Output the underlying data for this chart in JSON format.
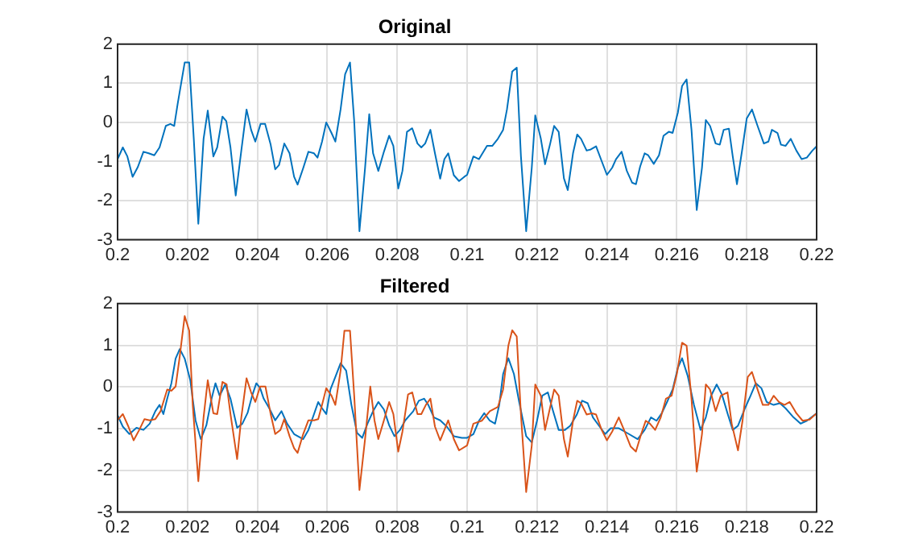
{
  "chart_data": [
    {
      "type": "line",
      "title": "Original",
      "xlim": [
        0.2,
        0.22
      ],
      "xticks": [
        0.2,
        0.202,
        0.204,
        0.206,
        0.208,
        0.21,
        0.212,
        0.214,
        0.216,
        0.218,
        0.22
      ],
      "ylim": [
        -3,
        2
      ],
      "yticks": [
        -3,
        -2,
        -1,
        0,
        1,
        2
      ],
      "grid": true,
      "series": [
        {
          "color": "#0072bd",
          "x": [
            0.2,
            0.20015,
            0.20028,
            0.20043,
            0.20058,
            0.20074,
            0.20089,
            0.20105,
            0.2012,
            0.20138,
            0.20151,
            0.20162,
            0.20172,
            0.20192,
            0.20205,
            0.20218,
            0.20231,
            0.20246,
            0.20258,
            0.20274,
            0.20285,
            0.203,
            0.20311,
            0.20323,
            0.20338,
            0.20354,
            0.20369,
            0.20382,
            0.20394,
            0.20409,
            0.20422,
            0.20438,
            0.20451,
            0.20462,
            0.20477,
            0.20492,
            0.20505,
            0.20515,
            0.20531,
            0.20546,
            0.20562,
            0.20572,
            0.20585,
            0.20597,
            0.20612,
            0.20623,
            0.20638,
            0.20651,
            0.20665,
            0.20677,
            0.20692,
            0.20708,
            0.2072,
            0.20731,
            0.20746,
            0.20762,
            0.20777,
            0.20789,
            0.20803,
            0.20815,
            0.20828,
            0.20843,
            0.20858,
            0.20869,
            0.2088,
            0.20895,
            0.20908,
            0.20923,
            0.20935,
            0.20946,
            0.20962,
            0.20977,
            0.20992,
            0.21,
            0.21018,
            0.21034,
            0.21057,
            0.21072,
            0.21088,
            0.21103,
            0.21114,
            0.21129,
            0.21142,
            0.21154,
            0.21169,
            0.21185,
            0.21195,
            0.21211,
            0.21223,
            0.21237,
            0.21249,
            0.21262,
            0.21277,
            0.21288,
            0.21303,
            0.21315,
            0.21326,
            0.21342,
            0.21354,
            0.21369,
            0.21385,
            0.214,
            0.21415,
            0.21426,
            0.21442,
            0.21457,
            0.21472,
            0.21483,
            0.21495,
            0.21508,
            0.21518,
            0.21534,
            0.21549,
            0.21562,
            0.21577,
            0.21588,
            0.21603,
            0.21615,
            0.21628,
            0.21642,
            0.21657,
            0.21672,
            0.21683,
            0.21695,
            0.21711,
            0.21723,
            0.21734,
            0.21749,
            0.2176,
            0.21772,
            0.21788,
            0.218,
            0.21815,
            0.21831,
            0.21849,
            0.21862,
            0.21872,
            0.21888,
            0.21898,
            0.21911,
            0.21926,
            0.21942,
            0.21957,
            0.21972,
            0.21988,
            0.22
          ],
          "values": [
            -0.94,
            -0.64,
            -0.87,
            -1.39,
            -1.14,
            -0.75,
            -0.79,
            -0.84,
            -0.64,
            -0.09,
            -0.04,
            -0.09,
            0.48,
            1.53,
            1.53,
            -0.42,
            -2.59,
            -0.42,
            0.3,
            -0.87,
            -0.64,
            0.15,
            0.03,
            -0.64,
            -1.87,
            -0.72,
            0.33,
            -0.19,
            -0.49,
            -0.04,
            -0.04,
            -0.57,
            -1.2,
            -1.09,
            -0.54,
            -0.79,
            -1.39,
            -1.59,
            -1.17,
            -0.75,
            -0.79,
            -0.9,
            -0.49,
            0,
            -0.27,
            -0.49,
            0.33,
            1.23,
            1.53,
            0.03,
            -2.78,
            -1.17,
            0.21,
            -0.79,
            -1.24,
            -0.75,
            -0.34,
            -0.6,
            -1.69,
            -1.24,
            -0.24,
            -0.15,
            -0.54,
            -0.64,
            -0.54,
            -0.19,
            -0.79,
            -1.44,
            -0.94,
            -0.79,
            -1.35,
            -1.5,
            -1.39,
            -1.34,
            -0.87,
            -0.94,
            -0.6,
            -0.6,
            -0.42,
            -0.19,
            0.33,
            1.3,
            1.4,
            -0.87,
            -2.78,
            -1.16,
            0.18,
            -0.42,
            -1.07,
            -0.57,
            -0.09,
            -0.24,
            -1.43,
            -1.73,
            -0.79,
            -0.31,
            -0.42,
            -0.72,
            -0.69,
            -0.61,
            -0.99,
            -1.34,
            -1.16,
            -0.94,
            -0.75,
            -1.24,
            -1.54,
            -1.58,
            -1.13,
            -0.79,
            -0.84,
            -1.06,
            -0.84,
            -0.34,
            -0.24,
            -0.27,
            0.25,
            0.93,
            1.1,
            -0.19,
            -2.24,
            -1.16,
            0.06,
            -0.09,
            -0.54,
            -0.57,
            -0.19,
            -0.16,
            -0.87,
            -1.58,
            -0.64,
            0.1,
            0.33,
            -0.09,
            -0.54,
            -0.49,
            -0.19,
            -0.27,
            -0.57,
            -0.6,
            -0.42,
            -0.72,
            -0.94,
            -0.9,
            -0.72,
            -0.61
          ]
        }
      ]
    },
    {
      "type": "line",
      "title": "Filtered",
      "xlim": [
        0.2,
        0.22
      ],
      "xticks": [
        0.2,
        0.202,
        0.204,
        0.206,
        0.208,
        0.21,
        0.212,
        0.214,
        0.216,
        0.218,
        0.22
      ],
      "ylim": [
        -3,
        2
      ],
      "yticks": [
        -3,
        -2,
        -1,
        0,
        1,
        2
      ],
      "grid": true,
      "series": [
        {
          "color": "#d95319",
          "x": [
            0.2,
            0.20015,
            0.20031,
            0.20046,
            0.20062,
            0.20077,
            0.20092,
            0.20108,
            0.20123,
            0.20142,
            0.20154,
            0.20166,
            0.20177,
            0.20192,
            0.20205,
            0.20215,
            0.20231,
            0.20246,
            0.20258,
            0.20274,
            0.20285,
            0.203,
            0.20312,
            0.20323,
            0.20342,
            0.20354,
            0.20369,
            0.20382,
            0.20394,
            0.20408,
            0.20423,
            0.20438,
            0.20451,
            0.20466,
            0.20477,
            0.20492,
            0.20505,
            0.20515,
            0.20531,
            0.20546,
            0.20562,
            0.20574,
            0.20585,
            0.20597,
            0.20612,
            0.20623,
            0.20638,
            0.20649,
            0.20665,
            0.20677,
            0.20692,
            0.20708,
            0.20723,
            0.20735,
            0.20746,
            0.20762,
            0.20777,
            0.20789,
            0.20803,
            0.20815,
            0.20831,
            0.20843,
            0.20858,
            0.20869,
            0.20882,
            0.20895,
            0.20908,
            0.20923,
            0.20935,
            0.20946,
            0.20962,
            0.20977,
            0.21,
            0.21018,
            0.21042,
            0.21065,
            0.21088,
            0.21103,
            0.21118,
            0.21129,
            0.21142,
            0.21154,
            0.21169,
            0.21185,
            0.21195,
            0.21211,
            0.21223,
            0.21237,
            0.21249,
            0.21262,
            0.21277,
            0.21288,
            0.21303,
            0.21315,
            0.21326,
            0.21342,
            0.21357,
            0.21369,
            0.21385,
            0.214,
            0.21415,
            0.21434,
            0.21449,
            0.21468,
            0.21483,
            0.21498,
            0.21511,
            0.21523,
            0.21538,
            0.21554,
            0.21569,
            0.21585,
            0.216,
            0.21615,
            0.21628,
            0.21642,
            0.21657,
            0.21672,
            0.21683,
            0.21695,
            0.21711,
            0.21726,
            0.21745,
            0.21757,
            0.21775,
            0.21788,
            0.21803,
            0.21815,
            0.21831,
            0.21846,
            0.21862,
            0.21877,
            0.21892,
            0.21908,
            0.21923,
            0.21942,
            0.2196,
            0.2198,
            0.22
          ],
          "values": [
            -0.8,
            -0.65,
            -0.95,
            -1.28,
            -1.03,
            -0.77,
            -0.8,
            -0.77,
            -0.58,
            -0.06,
            -0.09,
            0.01,
            0.68,
            1.7,
            1.35,
            -0.43,
            -2.26,
            -0.73,
            0.16,
            -0.63,
            -0.65,
            0.12,
            0.06,
            -0.65,
            -1.73,
            -0.73,
            0.21,
            -0.13,
            -0.36,
            0.01,
            0.01,
            -0.65,
            -1.13,
            -1.03,
            -0.77,
            -1.18,
            -1.47,
            -1.58,
            -1.13,
            -0.8,
            -0.8,
            -0.77,
            -0.43,
            -0.03,
            -0.21,
            -0.43,
            0.39,
            1.35,
            1.35,
            -0.21,
            -2.47,
            -1.25,
            0.01,
            -0.8,
            -1.25,
            -0.8,
            -0.36,
            -0.65,
            -1.55,
            -1.07,
            -0.18,
            -0.13,
            -0.65,
            -0.65,
            -0.43,
            -0.28,
            -0.95,
            -1.28,
            -1.03,
            -0.8,
            -1.25,
            -1.52,
            -1.4,
            -0.88,
            -0.81,
            -0.58,
            -0.48,
            -0.06,
            0.99,
            1.36,
            1.21,
            -0.66,
            -2.52,
            -1.4,
            0.06,
            -0.21,
            -1.03,
            -0.51,
            -0.06,
            -0.21,
            -1.25,
            -1.67,
            -0.81,
            -0.33,
            -0.39,
            -0.66,
            -0.63,
            -0.66,
            -1.03,
            -1.28,
            -1.07,
            -0.73,
            -1.03,
            -1.43,
            -1.55,
            -1.13,
            -0.81,
            -0.88,
            -1.03,
            -0.73,
            -0.28,
            -0.21,
            0.31,
            1.06,
            0.99,
            -0.28,
            -2.03,
            -1.13,
            0.06,
            -0.06,
            -0.58,
            -0.21,
            -0.13,
            -0.88,
            -1.52,
            -0.81,
            0.24,
            0.36,
            -0.06,
            -0.43,
            -0.43,
            -0.21,
            -0.36,
            -0.43,
            -0.36,
            -0.63,
            -0.81,
            -0.78,
            -0.63
          ]
        },
        {
          "color": "#0072bd",
          "x": [
            0.2,
            0.20015,
            0.20034,
            0.20054,
            0.20074,
            0.20092,
            0.20108,
            0.2012,
            0.20131,
            0.20142,
            0.20154,
            0.20166,
            0.20178,
            0.20192,
            0.20208,
            0.20223,
            0.20238,
            0.20254,
            0.20269,
            0.2028,
            0.20292,
            0.20308,
            0.20323,
            0.20342,
            0.20357,
            0.20372,
            0.20385,
            0.20397,
            0.20408,
            0.20418,
            0.20434,
            0.20451,
            0.20469,
            0.20485,
            0.20505,
            0.20531,
            0.20546,
            0.20562,
            0.20574,
            0.20585,
            0.20597,
            0.20609,
            0.20623,
            0.20638,
            0.20654,
            0.20669,
            0.20685,
            0.207,
            0.20715,
            0.20731,
            0.20746,
            0.20762,
            0.20777,
            0.20792,
            0.20808,
            0.20823,
            0.20846,
            0.20862,
            0.20877,
            0.20889,
            0.20905,
            0.20923,
            0.20942,
            0.20962,
            0.20985,
            0.21,
            0.21018,
            0.21034,
            0.21049,
            0.21065,
            0.2108,
            0.21092,
            0.21103,
            0.21118,
            0.21134,
            0.21149,
            0.21169,
            0.21185,
            0.212,
            0.21215,
            0.21231,
            0.21246,
            0.21262,
            0.2128,
            0.21295,
            0.21314,
            0.21329,
            0.21345,
            0.2136,
            0.2138,
            0.21395,
            0.21411,
            0.21434,
            0.21457,
            0.21488,
            0.21508,
            0.21526,
            0.21542,
            0.21557,
            0.21572,
            0.21588,
            0.21603,
            0.21615,
            0.21631,
            0.21649,
            0.21668,
            0.21683,
            0.21698,
            0.21714,
            0.21729,
            0.21745,
            0.2176,
            0.21775,
            0.21795,
            0.21811,
            0.21826,
            0.21842,
            0.21857,
            0.21877,
            0.21895,
            0.21911,
            0.21934,
            0.21954,
            0.21972,
            0.22
          ],
          "values": [
            -0.68,
            -0.95,
            -1.13,
            -0.98,
            -1.03,
            -0.88,
            -0.58,
            -0.43,
            -0.65,
            -0.28,
            0.09,
            0.68,
            0.91,
            0.68,
            0.16,
            -0.8,
            -1.25,
            -0.92,
            -0.28,
            0.09,
            -0.21,
            0.06,
            -0.28,
            -0.98,
            -0.88,
            -0.62,
            -0.21,
            0.09,
            -0.03,
            -0.28,
            -0.51,
            -0.8,
            -0.58,
            -0.88,
            -1.13,
            -1.25,
            -1.03,
            -0.65,
            -0.36,
            -0.51,
            -0.65,
            -0.06,
            0.24,
            0.57,
            0.39,
            -0.43,
            -1.1,
            -1.22,
            -0.88,
            -0.58,
            -0.36,
            -0.54,
            -0.92,
            -1.18,
            -1.03,
            -0.8,
            -0.58,
            -0.33,
            -0.28,
            -0.43,
            -0.73,
            -0.8,
            -0.95,
            -1.18,
            -1.22,
            -1.22,
            -1.13,
            -0.81,
            -0.63,
            -0.81,
            -0.88,
            -0.43,
            0.31,
            0.69,
            0.31,
            -0.36,
            -1.18,
            -1.33,
            -0.81,
            -0.21,
            -0.13,
            -0.58,
            -1.03,
            -1.03,
            -0.93,
            -0.66,
            -0.33,
            -0.39,
            -0.73,
            -0.96,
            -1.13,
            -0.99,
            -0.99,
            -1.1,
            -1.25,
            -1.03,
            -0.73,
            -0.81,
            -0.63,
            -0.36,
            -0.06,
            0.46,
            0.69,
            0.27,
            -0.43,
            -1.03,
            -0.73,
            -0.21,
            0.06,
            -0.18,
            -0.63,
            -1.03,
            -0.93,
            -0.51,
            -0.21,
            0.09,
            -0.03,
            -0.36,
            -0.43,
            -0.39,
            -0.51,
            -0.73,
            -0.88,
            -0.81,
            -0.63
          ]
        }
      ]
    }
  ]
}
